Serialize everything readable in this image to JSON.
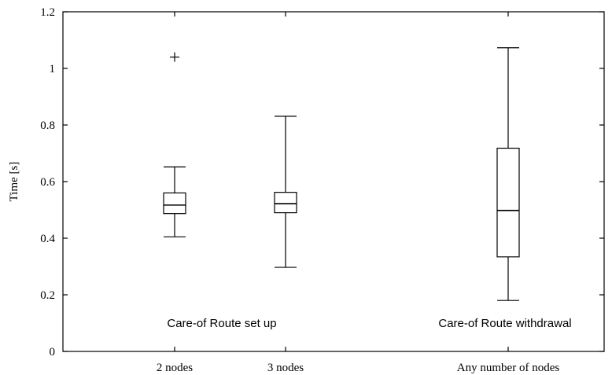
{
  "chart_data": {
    "type": "box",
    "ylabel": "Time [s]",
    "xlabel": "",
    "title": "",
    "ylim": [
      0,
      1.2
    ],
    "yticks": [
      "0",
      "0.2",
      "0.4",
      "0.6",
      "0.8",
      "1",
      "1.2"
    ],
    "grid": false,
    "series": [
      {
        "category": "2 nodes",
        "whisker_low": 0.405,
        "q1": 0.487,
        "median": 0.517,
        "q3": 0.56,
        "whisker_high": 0.652,
        "outliers": [
          1.04
        ]
      },
      {
        "category": "3 nodes",
        "whisker_low": 0.297,
        "q1": 0.49,
        "median": 0.522,
        "q3": 0.562,
        "whisker_high": 0.831,
        "outliers": []
      },
      {
        "category": "Any number of nodes",
        "whisker_low": 0.18,
        "q1": 0.334,
        "median": 0.498,
        "q3": 0.718,
        "whisker_high": 1.073,
        "outliers": []
      }
    ],
    "annotations": [
      {
        "text": "Care-of Route set up",
        "y": 0.1
      },
      {
        "text": "Care-of Route withdrawal",
        "y": 0.1
      }
    ]
  }
}
